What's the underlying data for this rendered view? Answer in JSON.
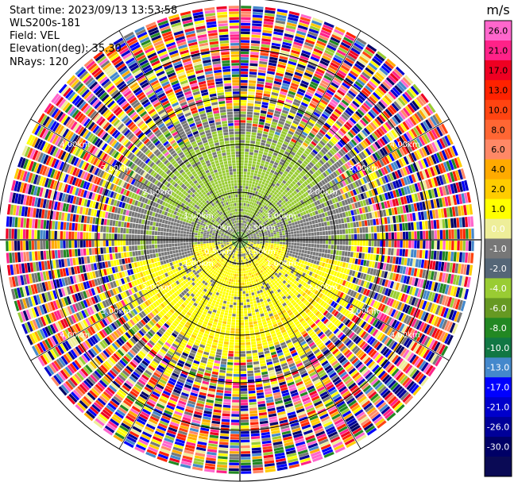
{
  "header": {
    "start_time": "Start time: 2023/09/13 13:53:58",
    "instrument": "WLS200s-181",
    "field": "Field: VEL",
    "elevation": "Elevation(deg): 35.30",
    "nrays": "NRays: 120"
  },
  "chart_data": {
    "type": "heatmap",
    "projection": "polar-ppi",
    "field": "VEL",
    "units": "m/s",
    "nrays": 120,
    "range_rings_km": [
      0.5,
      1.0,
      2.0,
      3.0,
      4.0
    ],
    "range_ring_labels": {
      "r05": "0.50km",
      "r10": "1.00km",
      "r20": "2.00km",
      "r30": "3.00km",
      "r40": "4.00km"
    },
    "max_range_km": 4.8,
    "colorbar": {
      "label": "m/s",
      "ticks": [
        "26.0",
        "21.0",
        "17.0",
        "13.0",
        "10.0",
        "8.0",
        "6.0",
        "4.0",
        "2.0",
        "1.0",
        "0.0",
        "-1.0",
        "-2.0",
        "-4.0",
        "-6.0",
        "-8.0",
        "-10.0",
        "-13.0",
        "-17.0",
        "-21.0",
        "-26.0",
        "-30.0"
      ],
      "colors": [
        "#ff66cc",
        "#ff2288",
        "#ee0022",
        "#ff2200",
        "#ff4411",
        "#ff6633",
        "#ff8866",
        "#ffaa00",
        "#ffcc00",
        "#ffff00",
        "#eeee99",
        "#777777",
        "#556677",
        "#99cc33",
        "#669922",
        "#228822",
        "#117744",
        "#4488cc",
        "#0000ff",
        "#0000cc",
        "#000099",
        "#000066",
        "#0a0a55"
      ]
    },
    "structure_note": ""
  }
}
